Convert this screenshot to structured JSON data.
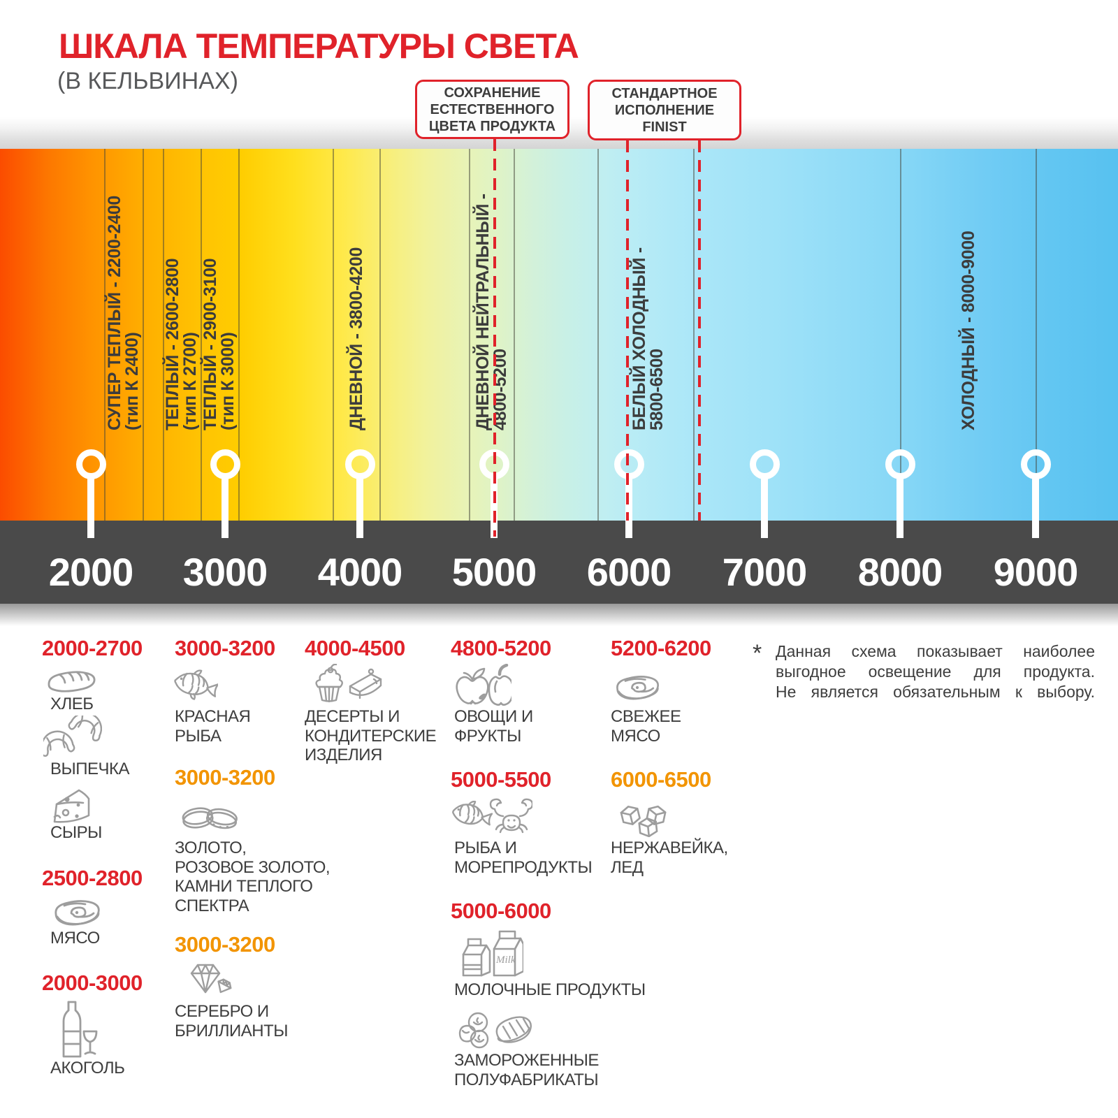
{
  "title": "ШКАЛА ТЕМПЕРАТУРЫ СВЕТА",
  "subtitle": "(В КЕЛЬВИНАХ)",
  "callouts": [
    {
      "text": "СОХРАНЕНИЕ\nЕСТЕСТВЕННОГО\nЦВЕТА ПРОДУКТА"
    },
    {
      "text": "СТАНДАРТНОЕ\nИСПОЛНЕНИЕ\nFINIST"
    }
  ],
  "colors": {
    "accent_red": "#e0222a",
    "accent_orange": "#f29400",
    "axis_bar": "#4a4a4a",
    "text_dark": "#3e3e3e",
    "icon_gray": "#9d9d9d",
    "gradient_left": "#fb4c00",
    "gradient_right": "#57c1f0"
  },
  "scale": {
    "unit": "K",
    "ticks": [
      "2000",
      "3000",
      "4000",
      "5000",
      "6000",
      "7000",
      "8000",
      "9000"
    ],
    "zones": [
      {
        "label": "СУПЕР ТЕПЛЫЙ - 2200-2400\n(тип К 2400)"
      },
      {
        "label": "ТЕПЛЫЙ - 2600-2800\n(тип К 2700)"
      },
      {
        "label": "ТЕПЛЫЙ - 2900-3100\n(тип К 3000)"
      },
      {
        "label": "ДНЕВНОЙ - 3800-4200"
      },
      {
        "label": "ДНЕВНОЙ НЕЙТРАЛЬНЫЙ -\n4800-5200"
      },
      {
        "label": "БЕЛЫЙ ХОЛОДНЫЙ -\n5800-6500"
      },
      {
        "label": "ХОЛОДНЫЙ - 8000-9000"
      }
    ]
  },
  "categories": [
    {
      "items": [
        {
          "type": "range",
          "text": "2000-2700",
          "color": "red"
        },
        {
          "type": "item",
          "icon": "bread",
          "label": "ХЛЕБ"
        },
        {
          "type": "item",
          "icon": "croissant",
          "label": "ВЫПЕЧКА"
        },
        {
          "type": "item",
          "icon": "cheese",
          "label": "СЫРЫ"
        },
        {
          "type": "range",
          "text": "2500-2800",
          "color": "red"
        },
        {
          "type": "item",
          "icon": "steak",
          "label": "МЯСО"
        },
        {
          "type": "range",
          "text": "2000-3000",
          "color": "red"
        },
        {
          "type": "item",
          "icon": "alcohol",
          "label": "АКОГОЛЬ"
        }
      ]
    },
    {
      "items": [
        {
          "type": "range",
          "text": "3000-3200",
          "color": "red"
        },
        {
          "type": "item",
          "icon": "fish",
          "label": "КРАСНАЯ\nРЫБА"
        },
        {
          "type": "range",
          "text": "3000-3200",
          "color": "orange"
        },
        {
          "type": "item",
          "icon": "rings",
          "label": "ЗОЛОТО,\nРОЗОВОЕ ЗОЛОТО,\nКАМНИ ТЕПЛОГО\nСПЕКТРА"
        },
        {
          "type": "range",
          "text": "3000-3200",
          "color": "orange"
        },
        {
          "type": "item",
          "icon": "diamond",
          "label": "СЕРЕБРО И\nБРИЛЛИАНТЫ"
        }
      ]
    },
    {
      "items": [
        {
          "type": "range",
          "text": "4000-4500",
          "color": "red"
        },
        {
          "type": "item",
          "icon": "desserts",
          "label": "ДЕСЕРТЫ И\nКОНДИТЕРСКИЕ\nИЗДЕЛИЯ"
        }
      ]
    },
    {
      "items": [
        {
          "type": "range",
          "text": "4800-5200",
          "color": "red"
        },
        {
          "type": "item",
          "icon": "fruits",
          "label": "ОВОЩИ И\nФРУКТЫ"
        },
        {
          "type": "range",
          "text": "5000-5500",
          "color": "red"
        },
        {
          "type": "item",
          "icon": "seafood",
          "label": "РЫБА И\nМОРЕПРОДУКТЫ"
        },
        {
          "type": "range",
          "text": "5000-6000",
          "color": "red"
        },
        {
          "type": "item",
          "icon": "milk",
          "label": "МОЛОЧНЫЕ ПРОДУКТЫ"
        },
        {
          "type": "item",
          "icon": "frozen",
          "label": "ЗАМОРОЖЕННЫЕ\nПОЛУФАБРИКАТЫ"
        }
      ]
    },
    {
      "items": [
        {
          "type": "range",
          "text": "5200-6200",
          "color": "red"
        },
        {
          "type": "item",
          "icon": "steak",
          "label": "СВЕЖЕЕ\nМЯСО"
        },
        {
          "type": "range",
          "text": "6000-6500",
          "color": "orange"
        },
        {
          "type": "item",
          "icon": "ice",
          "label": "НЕРЖАВЕЙКА,\nЛЕД"
        }
      ]
    }
  ],
  "note": {
    "asterisk": "*",
    "lines": [
      "Данная схема показывает наиболее",
      "выгодное освещение для продукта.",
      "Не является обязательным к выбору."
    ]
  }
}
